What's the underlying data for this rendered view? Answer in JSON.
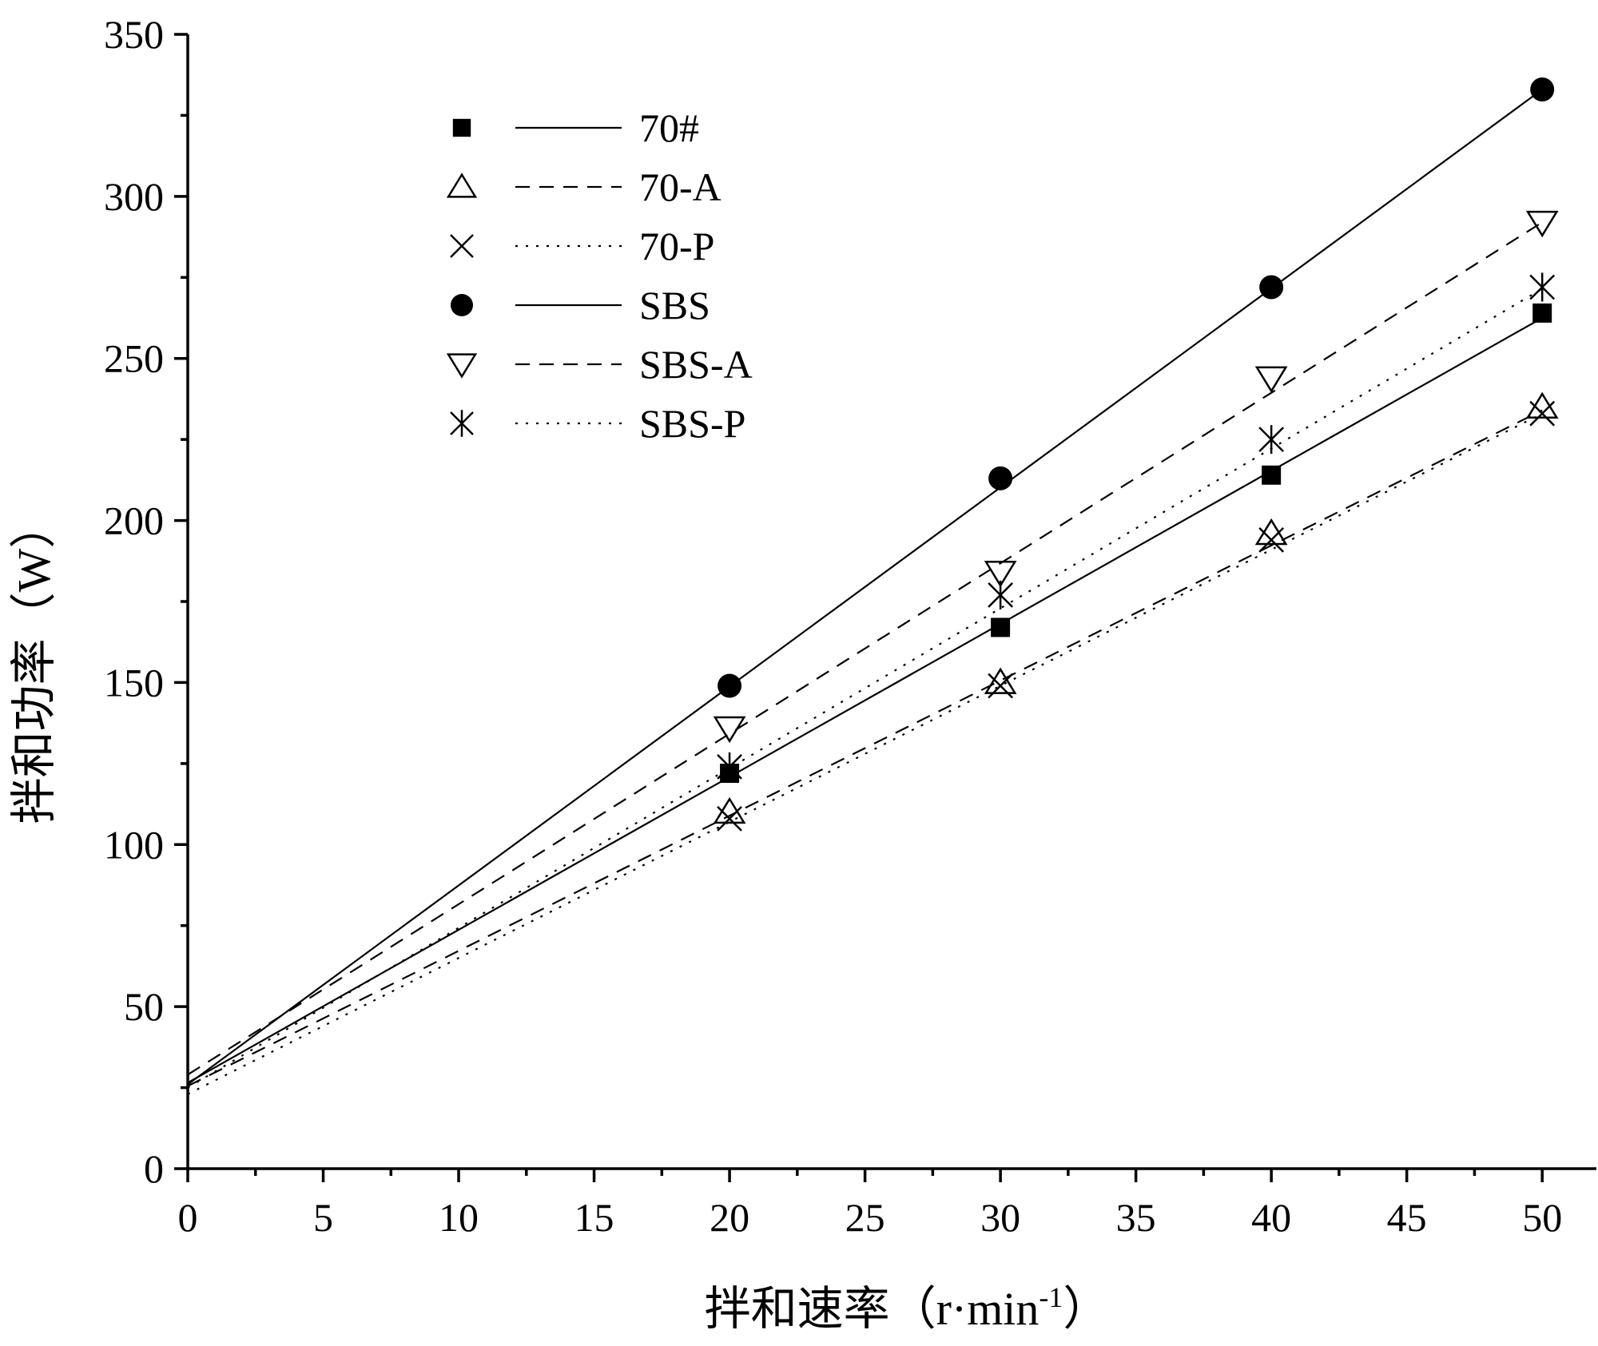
{
  "chart_data": {
    "type": "scatter",
    "xlabel": "拌和速率（r·min",
    "xlabel_sup": "-1",
    "xlabel_close": "）",
    "ylabel": "拌和功率（W）",
    "xlim": [
      0,
      52
    ],
    "ylim": [
      0,
      350
    ],
    "xticks": [
      0,
      5,
      10,
      15,
      20,
      25,
      30,
      35,
      40,
      45,
      50
    ],
    "yticks": [
      0,
      50,
      100,
      150,
      200,
      250,
      300,
      350
    ],
    "grid": false,
    "legend_position": "top-left",
    "series": [
      {
        "name": "70#",
        "marker": "filled-square",
        "line": "solid",
        "x": [
          20,
          30,
          40,
          50
        ],
        "y": [
          122,
          167,
          214,
          264
        ],
        "fit": {
          "intercept": 26.5,
          "slope": 4.72
        }
      },
      {
        "name": "70-A",
        "marker": "open-triangle-up",
        "line": "dashed",
        "x": [
          20,
          30,
          40,
          50
        ],
        "y": [
          110,
          150,
          196,
          235
        ],
        "fit": {
          "intercept": 25.5,
          "slope": 4.17
        }
      },
      {
        "name": "70-P",
        "marker": "x-cross",
        "line": "dotted",
        "x": [
          20,
          30,
          40,
          50
        ],
        "y": [
          108,
          149,
          194,
          233
        ],
        "fit": {
          "intercept": 23.0,
          "slope": 4.2
        }
      },
      {
        "name": "SBS",
        "marker": "filled-circle",
        "line": "solid",
        "x": [
          20,
          30,
          40,
          50
        ],
        "y": [
          149,
          213,
          272,
          333
        ],
        "fit": {
          "intercept": 26.0,
          "slope": 6.14
        }
      },
      {
        "name": "SBS-A",
        "marker": "open-triangle-down",
        "line": "dashed",
        "x": [
          20,
          30,
          40,
          50
        ],
        "y": [
          136,
          184,
          244,
          292
        ],
        "fit": {
          "intercept": 29.0,
          "slope": 5.26
        }
      },
      {
        "name": "SBS-P",
        "marker": "asterisk",
        "line": "dotted",
        "x": [
          20,
          30,
          40,
          50
        ],
        "y": [
          124,
          177,
          225,
          272
        ],
        "fit": {
          "intercept": 25.0,
          "slope": 4.93
        }
      }
    ]
  }
}
